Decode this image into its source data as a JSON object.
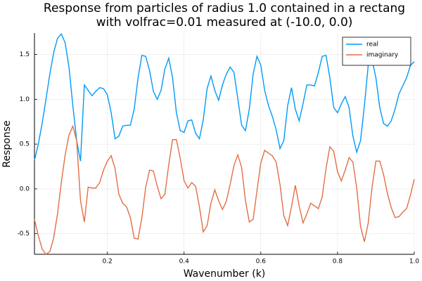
{
  "chart_data": {
    "type": "line",
    "title": [
      "Response from particles of radius 1.0 contained in a rectang",
      "with volfrac=0.01 measured at (-10.0, 0.0)"
    ],
    "x_label": "Wavenumber (k)",
    "y_label": "Response",
    "x": [
      0.01,
      0.02,
      0.03,
      0.04,
      0.05,
      0.06,
      0.07,
      0.08,
      0.09,
      0.1,
      0.11,
      0.12,
      0.13,
      0.14,
      0.15,
      0.16,
      0.17,
      0.18,
      0.19,
      0.2,
      0.21,
      0.22,
      0.23,
      0.24,
      0.25,
      0.26,
      0.27,
      0.28,
      0.29,
      0.3,
      0.31,
      0.32,
      0.33,
      0.34,
      0.35,
      0.36,
      0.37,
      0.38,
      0.39,
      0.4,
      0.41,
      0.42,
      0.43,
      0.44,
      0.45,
      0.46,
      0.47,
      0.48,
      0.49,
      0.5,
      0.51,
      0.52,
      0.53,
      0.54,
      0.55,
      0.56,
      0.57,
      0.58,
      0.59,
      0.6,
      0.61,
      0.62,
      0.63,
      0.64,
      0.65,
      0.66,
      0.67,
      0.68,
      0.69,
      0.7,
      0.71,
      0.72,
      0.73,
      0.74,
      0.75,
      0.76,
      0.77,
      0.78,
      0.79,
      0.8,
      0.81,
      0.82,
      0.83,
      0.84,
      0.85,
      0.86,
      0.87,
      0.88,
      0.89,
      0.9,
      0.91,
      0.92,
      0.93,
      0.94,
      0.95,
      0.96,
      0.97,
      0.98,
      0.99,
      1.0
    ],
    "series": [
      {
        "name": "real",
        "color": "#009af9",
        "values": [
          0.32,
          0.5,
          0.73,
          1.0,
          1.28,
          1.52,
          1.68,
          1.73,
          1.63,
          1.36,
          0.93,
          0.54,
          0.31,
          1.16,
          1.1,
          1.04,
          1.09,
          1.13,
          1.12,
          1.05,
          0.85,
          0.56,
          0.59,
          0.7,
          0.71,
          0.71,
          0.89,
          1.24,
          1.49,
          1.48,
          1.32,
          1.09,
          1.0,
          1.1,
          1.34,
          1.46,
          1.24,
          0.85,
          0.65,
          0.63,
          0.76,
          0.77,
          0.62,
          0.56,
          0.77,
          1.12,
          1.26,
          1.1,
          0.99,
          1.16,
          1.28,
          1.36,
          1.3,
          1.01,
          0.71,
          0.65,
          0.89,
          1.28,
          1.48,
          1.38,
          1.1,
          0.93,
          0.81,
          0.66,
          0.45,
          0.54,
          0.93,
          1.13,
          0.89,
          0.76,
          0.95,
          1.16,
          1.16,
          1.15,
          1.3,
          1.48,
          1.49,
          1.24,
          0.91,
          0.85,
          0.95,
          1.03,
          0.91,
          0.59,
          0.41,
          0.54,
          0.93,
          1.38,
          1.44,
          1.24,
          0.91,
          0.73,
          0.7,
          0.76,
          0.89,
          1.06,
          1.15,
          1.24,
          1.38,
          1.42
        ]
      },
      {
        "name": "imaginary",
        "color": "#e26f46",
        "values": [
          -0.34,
          -0.52,
          -0.67,
          -0.73,
          -0.7,
          -0.55,
          -0.28,
          0.07,
          0.38,
          0.6,
          0.7,
          0.54,
          -0.13,
          -0.37,
          0.02,
          0.01,
          0.01,
          0.07,
          0.21,
          0.31,
          0.37,
          0.23,
          -0.06,
          -0.16,
          -0.2,
          -0.32,
          -0.55,
          -0.56,
          -0.32,
          0.02,
          0.21,
          0.2,
          0.03,
          -0.11,
          -0.06,
          0.27,
          0.55,
          0.55,
          0.34,
          0.09,
          0.01,
          0.07,
          0.03,
          -0.2,
          -0.48,
          -0.41,
          -0.16,
          -0.01,
          -0.13,
          -0.23,
          -0.14,
          0.05,
          0.26,
          0.38,
          0.24,
          -0.13,
          -0.37,
          -0.34,
          -0.02,
          0.29,
          0.43,
          0.4,
          0.37,
          0.3,
          0.05,
          -0.3,
          -0.41,
          -0.2,
          0.04,
          -0.19,
          -0.38,
          -0.28,
          -0.16,
          -0.19,
          -0.22,
          -0.09,
          0.23,
          0.47,
          0.42,
          0.19,
          0.09,
          0.21,
          0.35,
          0.3,
          0.01,
          -0.42,
          -0.59,
          -0.38,
          0.02,
          0.31,
          0.31,
          0.16,
          -0.05,
          -0.21,
          -0.32,
          -0.31,
          -0.26,
          -0.22,
          -0.07,
          0.11
        ]
      }
    ],
    "xlim": [
      0.01,
      1.0
    ],
    "xticks": [
      0.2,
      0.4,
      0.6,
      0.8,
      {
        "value": 1,
        "label": "1.0"
      }
    ],
    "ylim": [
      -0.73,
      1.74
    ],
    "yticks": [
      -0.5,
      {
        "value": 0,
        "label": "0.0"
      },
      0.5,
      {
        "value": 1,
        "label": "1.0"
      },
      1.5
    ],
    "grid": true,
    "legend": "top-right"
  }
}
